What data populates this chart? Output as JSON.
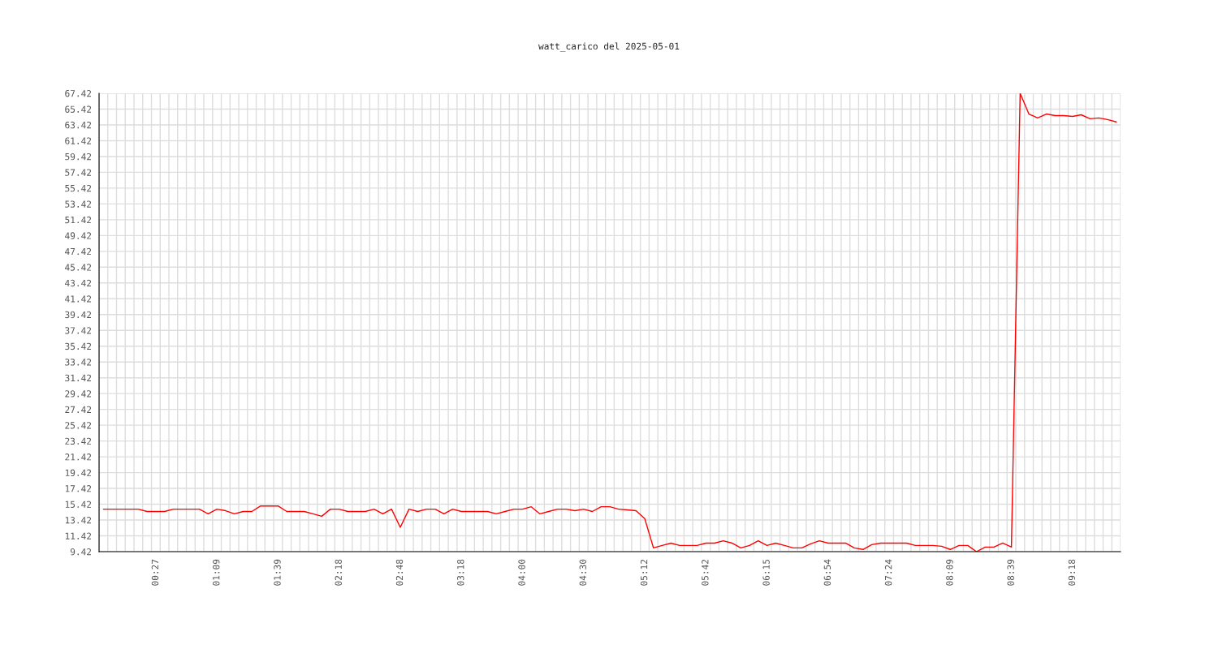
{
  "chart_data": {
    "type": "line",
    "title": "watt_carico del 2025-05-01",
    "categories": [
      null,
      null,
      null,
      null,
      null,
      null,
      "00:27",
      null,
      null,
      null,
      null,
      null,
      null,
      "01:09",
      null,
      null,
      null,
      null,
      null,
      null,
      "01:39",
      null,
      null,
      null,
      null,
      null,
      null,
      "02:18",
      null,
      null,
      null,
      null,
      null,
      null,
      "02:48",
      null,
      null,
      null,
      null,
      null,
      null,
      "03:18",
      null,
      null,
      null,
      null,
      null,
      null,
      "04:00",
      null,
      null,
      null,
      null,
      null,
      null,
      "04:30",
      null,
      null,
      null,
      null,
      null,
      null,
      "05:12",
      null,
      null,
      null,
      null,
      null,
      null,
      "05:42",
      null,
      null,
      null,
      null,
      null,
      null,
      "06:15",
      null,
      null,
      null,
      null,
      null,
      null,
      "06:54",
      null,
      null,
      null,
      null,
      null,
      null,
      "07:24",
      null,
      null,
      null,
      null,
      null,
      null,
      "08:09",
      null,
      null,
      null,
      null,
      null,
      null,
      "08:39",
      null,
      null,
      null,
      null,
      null,
      null,
      "09:18",
      null,
      null,
      null,
      null,
      null
    ],
    "series": [
      {
        "color": "#ff0000",
        "values": [
          14.8,
          14.8,
          14.8,
          14.8,
          14.8,
          14.5,
          14.5,
          14.5,
          14.8,
          14.8,
          14.8,
          14.8,
          14.2,
          14.8,
          14.6,
          14.2,
          14.5,
          14.5,
          15.2,
          15.2,
          15.2,
          14.5,
          14.5,
          14.5,
          14.2,
          13.9,
          14.8,
          14.8,
          14.5,
          14.5,
          14.5,
          14.8,
          14.2,
          14.8,
          12.5,
          14.8,
          14.5,
          14.8,
          14.8,
          14.2,
          14.8,
          14.5,
          14.5,
          14.5,
          14.5,
          14.2,
          14.5,
          14.8,
          14.8,
          15.1,
          14.2,
          14.5,
          14.8,
          14.8,
          14.6,
          14.8,
          14.5,
          15.1,
          15.1,
          14.8,
          14.7,
          14.6,
          13.6,
          9.9,
          10.2,
          10.5,
          10.2,
          10.2,
          10.2,
          10.5,
          10.5,
          10.8,
          10.5,
          9.9,
          10.2,
          10.8,
          10.2,
          10.5,
          10.2,
          9.9,
          9.9,
          10.4,
          10.8,
          10.5,
          10.5,
          10.5,
          9.9,
          9.7,
          10.3,
          10.5,
          10.5,
          10.5,
          10.5,
          10.2,
          10.2,
          10.2,
          10.1,
          9.7,
          10.2,
          10.2,
          9.42,
          10.0,
          10.0,
          10.5,
          10.0,
          67.42,
          64.8,
          64.3,
          64.8,
          64.6,
          64.6,
          64.5,
          64.7,
          64.2,
          64.3,
          64.1,
          63.8
        ]
      }
    ],
    "ylim": [
      9.42,
      67.42
    ],
    "yticks": [
      9.42,
      11.42,
      13.42,
      15.42,
      17.42,
      19.42,
      21.42,
      23.42,
      25.42,
      27.42,
      29.42,
      31.42,
      33.42,
      35.42,
      37.42,
      39.42,
      41.42,
      43.42,
      45.42,
      47.42,
      49.42,
      51.42,
      53.42,
      55.42,
      57.42,
      59.42,
      61.42,
      63.42,
      65.42,
      67.42
    ],
    "grid": true,
    "legend": false,
    "marker": "none",
    "line_style": "solid"
  }
}
